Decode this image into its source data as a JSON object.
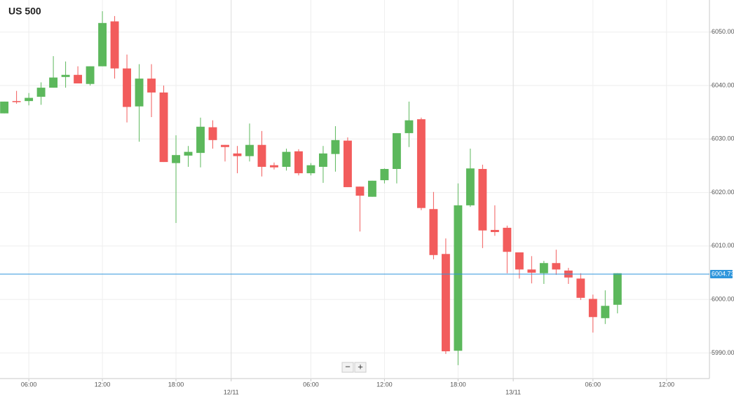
{
  "chart_data": {
    "type": "candlestick",
    "title": "US 500",
    "x": [
      0,
      1,
      2,
      3,
      4,
      5,
      6,
      7,
      8,
      9,
      10,
      11,
      12,
      13,
      14,
      15,
      16,
      17,
      18,
      19,
      20,
      21,
      22,
      23,
      24,
      25,
      26,
      27,
      28,
      29,
      30,
      31,
      32,
      33,
      34,
      35,
      36,
      37,
      38,
      39,
      40,
      41,
      42,
      43,
      44,
      45,
      46,
      47,
      48,
      49,
      50
    ],
    "open": [
      6034.8,
      6037.1,
      6037.1,
      6037.9,
      6039.6,
      6041.6,
      6042.0,
      6040.3,
      6043.6,
      6052.0,
      6043.2,
      6036.1,
      6041.3,
      6038.7,
      6025.5,
      6026.9,
      6027.4,
      6032.2,
      6028.9,
      6027.3,
      6026.8,
      6028.9,
      6025.1,
      6024.8,
      6027.7,
      6023.6,
      6024.8,
      6027.2,
      6029.7,
      6021.1,
      6019.2,
      6022.3,
      6024.4,
      6031.1,
      6033.7,
      6016.9,
      6008.5,
      5990.4,
      6017.6,
      6024.4,
      6013.0,
      6013.4,
      6008.8,
      6005.6,
      6004.9,
      6006.8,
      6005.4,
      6003.9,
      6000.1,
      5996.5,
      5999.0
    ],
    "high": [
      6037.0,
      6039.0,
      6038.6,
      6040.6,
      6045.5,
      6044.5,
      6043.6,
      6043.6,
      6053.9,
      6053.0,
      6045.8,
      6044.0,
      6044.0,
      6040.0,
      6030.7,
      6028.7,
      6034.0,
      6033.5,
      6028.9,
      6028.7,
      6032.9,
      6031.5,
      6025.6,
      6028.2,
      6028.1,
      6025.5,
      6028.7,
      6032.4,
      6030.3,
      6021.1,
      6022.2,
      6024.5,
      6031.1,
      6037.0,
      6034.0,
      6020.1,
      6011.4,
      6021.7,
      6028.2,
      6025.2,
      6017.6,
      6013.8,
      6008.8,
      6008.1,
      6007.2,
      6009.3,
      6005.9,
      6004.9,
      6000.9,
      6001.7,
      6004.9
    ],
    "low": [
      6034.8,
      6036.6,
      6036.3,
      6036.4,
      6039.6,
      6039.6,
      6040.4,
      6040.0,
      6043.6,
      6041.3,
      6033.1,
      6029.5,
      6034.1,
      6025.7,
      6014.3,
      6024.8,
      6024.7,
      6028.2,
      6025.8,
      6023.6,
      6025.8,
      6023.0,
      6024.3,
      6024.1,
      6023.2,
      6023.2,
      6021.8,
      6023.9,
      6021.0,
      6012.7,
      6019.2,
      6021.7,
      6021.7,
      6028.5,
      6016.7,
      6007.5,
      5989.8,
      5987.7,
      6017.3,
      6009.6,
      6011.9,
      6004.9,
      6003.9,
      6003.0,
      6002.9,
      6004.6,
      6002.9,
      5999.9,
      5993.8,
      5995.4,
      5997.4
    ],
    "close": [
      6037.0,
      6036.9,
      6037.7,
      6039.6,
      6041.5,
      6042.0,
      6040.4,
      6043.6,
      6051.7,
      6043.2,
      6036.0,
      6041.3,
      6038.7,
      6025.7,
      6027.0,
      6027.6,
      6032.3,
      6029.8,
      6028.5,
      6026.8,
      6028.9,
      6024.8,
      6024.7,
      6027.6,
      6023.6,
      6025.1,
      6027.3,
      6029.8,
      6021.0,
      6019.4,
      6022.2,
      6024.4,
      6031.1,
      6033.5,
      6017.1,
      6008.3,
      5990.3,
      6017.6,
      6024.5,
      6012.9,
      6012.6,
      6008.9,
      6005.6,
      6005.0,
      6006.8,
      6005.6,
      6004.1,
      6000.3,
      5996.7,
      5998.8,
      6004.9
    ],
    "up_color": "#5cb85c",
    "down_color": "#f25c5c",
    "xlim": [
      -0.35,
      57.5
    ],
    "ylim": [
      5985.2,
      6056.0
    ],
    "xticks": [
      {
        "value": 2,
        "label": "06:00"
      },
      {
        "value": 8,
        "label": "12:00"
      },
      {
        "value": 14,
        "label": "18:00"
      },
      {
        "value": 18.5,
        "label": "12/11"
      },
      {
        "value": 25,
        "label": "06:00"
      },
      {
        "value": 31,
        "label": "12:00"
      },
      {
        "value": 37,
        "label": "18:00"
      },
      {
        "value": 41.5,
        "label": "13/11"
      },
      {
        "value": 48,
        "label": "06:00"
      },
      {
        "value": 54,
        "label": "12:00"
      }
    ],
    "yticks": [
      {
        "value": 5990,
        "label": "5990.00"
      },
      {
        "value": 6000,
        "label": "6000.00"
      },
      {
        "value": 6010,
        "label": "6010.00"
      },
      {
        "value": 6020,
        "label": "6020.00"
      },
      {
        "value": 6030,
        "label": "6030.00"
      },
      {
        "value": 6040,
        "label": "6040.00"
      },
      {
        "value": 6050,
        "label": "6050.00"
      }
    ],
    "grid": true,
    "last_price": 6004.73,
    "last_price_color": "#2f96dc"
  },
  "controls": [
    "−",
    "+"
  ]
}
